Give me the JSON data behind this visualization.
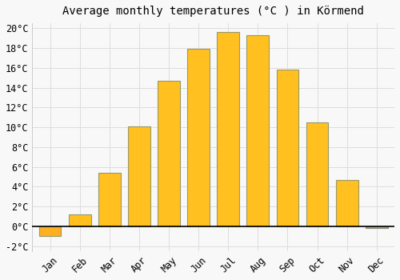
{
  "title": "Average monthly temperatures (°C ) in Körmend",
  "months": [
    "Jan",
    "Feb",
    "Mar",
    "Apr",
    "May",
    "Jun",
    "Jul",
    "Aug",
    "Sep",
    "Oct",
    "Nov",
    "Dec"
  ],
  "values": [
    -1.0,
    1.2,
    5.4,
    10.1,
    14.7,
    17.9,
    19.6,
    19.3,
    15.8,
    10.5,
    4.7,
    -0.2
  ],
  "bar_color": "#FFC020",
  "bar_edge_color": "#999966",
  "bar_color_jan": "#FFB020",
  "bar_color_dec": "#BBAA88",
  "bar_edge_dec": "#888877",
  "background_color": "#f8f8f8",
  "plot_bg_color": "#f8f8f8",
  "grid_color": "#dddddd",
  "ylim": [
    -2.5,
    20.5
  ],
  "ytick_vals": [
    0,
    2,
    4,
    6,
    8,
    10,
    12,
    14,
    16,
    18,
    20
  ],
  "ytick_extra": -2,
  "title_fontsize": 10,
  "tick_fontsize": 8.5,
  "fig_width": 5.0,
  "fig_height": 3.5,
  "dpi": 100
}
